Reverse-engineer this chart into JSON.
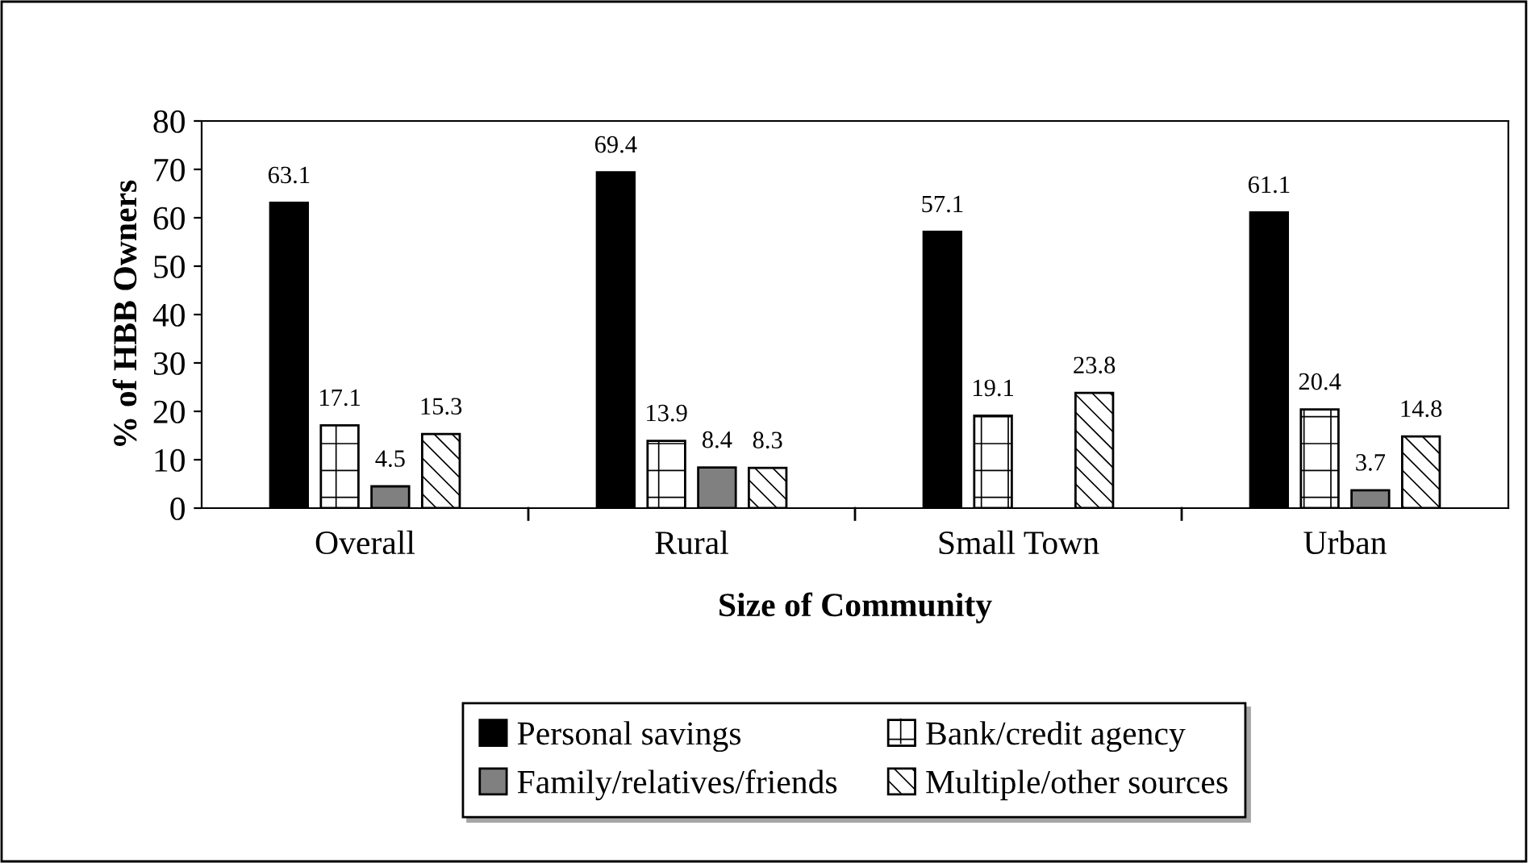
{
  "chart_data": {
    "type": "bar",
    "xlabel": "Size of Community",
    "ylabel": "% of HBB Owners",
    "categories": [
      "Overall",
      "Rural",
      "Small Town",
      "Urban"
    ],
    "series": [
      {
        "name": "Personal savings",
        "color": "#000000",
        "values": [
          63.1,
          69.4,
          57.1,
          61.1
        ]
      },
      {
        "name": "Bank/credit agency",
        "color": "#ffffff",
        "values": [
          17.1,
          13.9,
          19.1,
          20.4
        ]
      },
      {
        "name": "Family/relatives/friends",
        "color": "#808080",
        "values": [
          4.5,
          8.4,
          null,
          3.7
        ]
      },
      {
        "name": "Multiple/other sources",
        "color": "#ffffff",
        "values": [
          15.3,
          8.3,
          23.8,
          14.8
        ]
      }
    ],
    "ylim": [
      0,
      80
    ],
    "yticks": [
      0,
      10,
      20,
      30,
      40,
      50,
      60,
      70,
      80
    ],
    "data_labels": true,
    "legend": "bottom",
    "grid": false
  }
}
